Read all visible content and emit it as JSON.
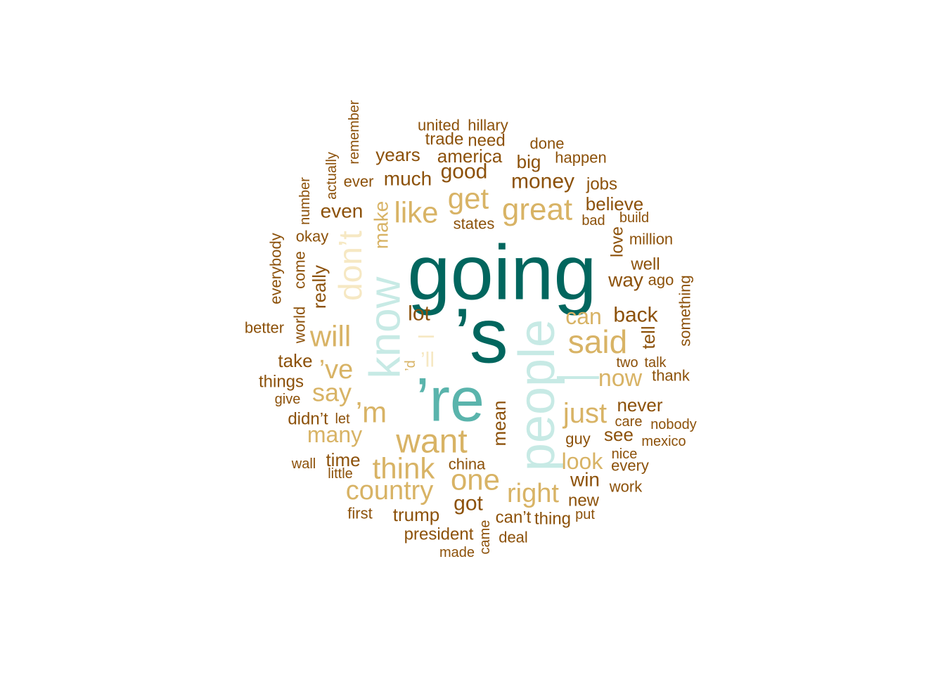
{
  "word_cloud": {
    "palette": {
      "dark_teal": "#01665e",
      "mid_teal": "#5ab4ac",
      "light_teal": "#c7eae5",
      "cream": "#f6e8c3",
      "tan": "#d8b365",
      "brown": "#8c510a"
    },
    "words": [
      {
        "text": "going",
        "color": "dark_teal"
      },
      {
        "text": "’s",
        "color": "dark_teal"
      },
      {
        "text": "’re",
        "color": "mid_teal"
      },
      {
        "text": "know",
        "color": "light_teal"
      },
      {
        "text": "people",
        "color": "light_teal"
      },
      {
        "text": "—",
        "color": "light_teal"
      },
      {
        "text": "don’t",
        "color": "cream"
      },
      {
        "text": "’ll",
        "color": "cream"
      },
      {
        "text": "–",
        "color": "cream"
      },
      {
        "text": "great",
        "color": "tan"
      },
      {
        "text": "get",
        "color": "tan"
      },
      {
        "text": "like",
        "color": "tan"
      },
      {
        "text": "said",
        "color": "tan"
      },
      {
        "text": "will",
        "color": "tan"
      },
      {
        "text": "’ve",
        "color": "tan"
      },
      {
        "text": "say",
        "color": "tan"
      },
      {
        "text": "’m",
        "color": "tan"
      },
      {
        "text": "want",
        "color": "tan"
      },
      {
        "text": "think",
        "color": "tan"
      },
      {
        "text": "one",
        "color": "tan"
      },
      {
        "text": "country",
        "color": "tan"
      },
      {
        "text": "just",
        "color": "tan"
      },
      {
        "text": "right",
        "color": "tan"
      },
      {
        "text": "can",
        "color": "tan"
      },
      {
        "text": "now",
        "color": "tan"
      },
      {
        "text": "many",
        "color": "tan"
      },
      {
        "text": "look",
        "color": "tan"
      },
      {
        "text": "make",
        "color": "tan"
      },
      {
        "text": "’d",
        "color": "tan"
      },
      {
        "text": "lot",
        "color": "brown"
      },
      {
        "text": "good",
        "color": "brown"
      },
      {
        "text": "much",
        "color": "brown"
      },
      {
        "text": "money",
        "color": "brown"
      },
      {
        "text": "america",
        "color": "brown"
      },
      {
        "text": "years",
        "color": "brown"
      },
      {
        "text": "trade",
        "color": "brown"
      },
      {
        "text": "need",
        "color": "brown"
      },
      {
        "text": "united",
        "color": "brown"
      },
      {
        "text": "hillary",
        "color": "brown"
      },
      {
        "text": "done",
        "color": "brown"
      },
      {
        "text": "big",
        "color": "brown"
      },
      {
        "text": "happen",
        "color": "brown"
      },
      {
        "text": "jobs",
        "color": "brown"
      },
      {
        "text": "believe",
        "color": "brown"
      },
      {
        "text": "bad",
        "color": "brown"
      },
      {
        "text": "build",
        "color": "brown"
      },
      {
        "text": "million",
        "color": "brown"
      },
      {
        "text": "love",
        "color": "brown"
      },
      {
        "text": "well",
        "color": "brown"
      },
      {
        "text": "way",
        "color": "brown"
      },
      {
        "text": "ago",
        "color": "brown"
      },
      {
        "text": "back",
        "color": "brown"
      },
      {
        "text": "tell",
        "color": "brown"
      },
      {
        "text": "something",
        "color": "brown"
      },
      {
        "text": "two",
        "color": "brown"
      },
      {
        "text": "talk",
        "color": "brown"
      },
      {
        "text": "thank",
        "color": "brown"
      },
      {
        "text": "never",
        "color": "brown"
      },
      {
        "text": "care",
        "color": "brown"
      },
      {
        "text": "nobody",
        "color": "brown"
      },
      {
        "text": "see",
        "color": "brown"
      },
      {
        "text": "guy",
        "color": "brown"
      },
      {
        "text": "mexico",
        "color": "brown"
      },
      {
        "text": "nice",
        "color": "brown"
      },
      {
        "text": "every",
        "color": "brown"
      },
      {
        "text": "win",
        "color": "brown"
      },
      {
        "text": "work",
        "color": "brown"
      },
      {
        "text": "new",
        "color": "brown"
      },
      {
        "text": "put",
        "color": "brown"
      },
      {
        "text": "thing",
        "color": "brown"
      },
      {
        "text": "can’t",
        "color": "brown"
      },
      {
        "text": "deal",
        "color": "brown"
      },
      {
        "text": "came",
        "color": "brown"
      },
      {
        "text": "made",
        "color": "brown"
      },
      {
        "text": "president",
        "color": "brown"
      },
      {
        "text": "trump",
        "color": "brown"
      },
      {
        "text": "got",
        "color": "brown"
      },
      {
        "text": "china",
        "color": "brown"
      },
      {
        "text": "mean",
        "color": "brown"
      },
      {
        "text": "first",
        "color": "brown"
      },
      {
        "text": "time",
        "color": "brown"
      },
      {
        "text": "little",
        "color": "brown"
      },
      {
        "text": "wall",
        "color": "brown"
      },
      {
        "text": "didn’t",
        "color": "brown"
      },
      {
        "text": "let",
        "color": "brown"
      },
      {
        "text": "give",
        "color": "brown"
      },
      {
        "text": "things",
        "color": "brown"
      },
      {
        "text": "take",
        "color": "brown"
      },
      {
        "text": "better",
        "color": "brown"
      },
      {
        "text": "world",
        "color": "brown"
      },
      {
        "text": "come",
        "color": "brown"
      },
      {
        "text": "really",
        "color": "brown"
      },
      {
        "text": "everybody",
        "color": "brown"
      },
      {
        "text": "okay",
        "color": "brown"
      },
      {
        "text": "number",
        "color": "brown"
      },
      {
        "text": "even",
        "color": "brown"
      },
      {
        "text": "ever",
        "color": "brown"
      },
      {
        "text": "actually",
        "color": "brown"
      },
      {
        "text": "remember",
        "color": "brown"
      },
      {
        "text": "states",
        "color": "brown"
      }
    ]
  }
}
